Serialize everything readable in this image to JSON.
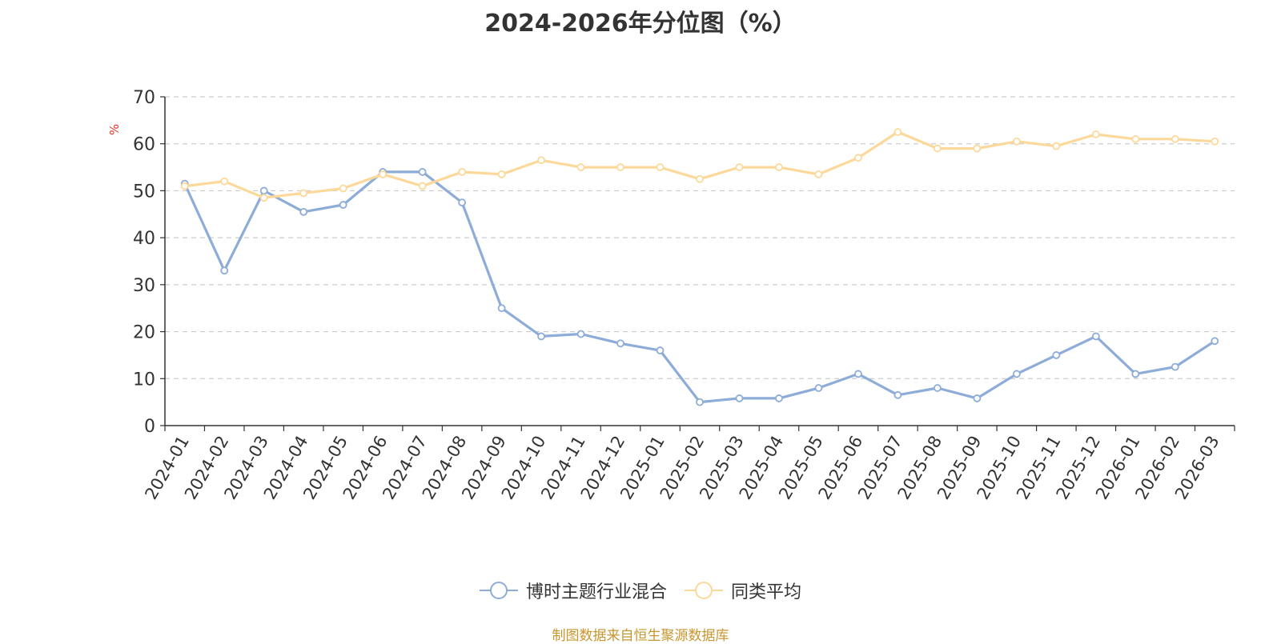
{
  "chart_data": {
    "type": "line",
    "title": "2024-2026年分位图（%）",
    "ylabel": "%",
    "xlabel": "",
    "ylim": [
      0,
      70
    ],
    "yticks": [
      0,
      10,
      20,
      30,
      40,
      50,
      60,
      70
    ],
    "grid": true,
    "legend_position": "bottom",
    "categories": [
      "2024-01",
      "2024-02",
      "2024-03",
      "2024-04",
      "2024-05",
      "2024-06",
      "2024-07",
      "2024-08",
      "2024-09",
      "2024-10",
      "2024-11",
      "2024-12",
      "2025-01",
      "2025-02",
      "2025-03",
      "2025-04",
      "2025-05",
      "2025-06",
      "2025-07",
      "2025-08",
      "2025-09",
      "2025-10",
      "2025-11",
      "2025-12",
      "2026-01",
      "2026-02",
      "2026-03"
    ],
    "series": [
      {
        "name": "博时主题行业混合",
        "color": "#8eacd8",
        "values": [
          51.5,
          33,
          50,
          45.5,
          47,
          54,
          54,
          47.5,
          25,
          19,
          19.5,
          17.5,
          16,
          5,
          5.8,
          5.8,
          8,
          11,
          6.5,
          8,
          5.8,
          11,
          15,
          19,
          11,
          12.5,
          18
        ]
      },
      {
        "name": "同类平均",
        "color": "#fcd99a",
        "values": [
          51,
          52,
          48.5,
          49.5,
          50.5,
          53.5,
          51,
          54,
          53.5,
          56.5,
          55,
          55,
          55,
          52.5,
          55,
          55,
          53.5,
          57,
          62.5,
          59,
          59,
          60.5,
          59.5,
          62,
          61,
          61,
          60.5
        ]
      }
    ]
  },
  "source_note": "制图数据来自恒生聚源数据库"
}
